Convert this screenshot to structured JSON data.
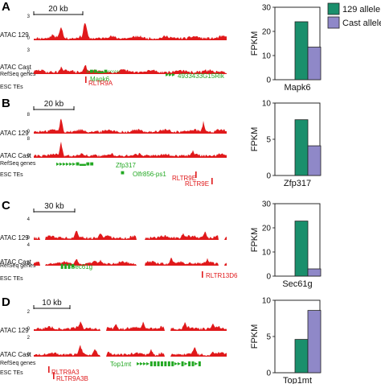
{
  "legend": {
    "items": [
      {
        "label": "129 allele",
        "color": "#1a8f6c"
      },
      {
        "label": "Cast allele",
        "color": "#8f88c8"
      }
    ]
  },
  "colors": {
    "atac": "#e0191b",
    "gene": "#22a822",
    "te": "#e0191b",
    "bar129": "#1a8f6c",
    "barCast": "#8f88c8"
  },
  "track_labels": {
    "atac129": "ATAC 129",
    "atacCast": "ATAC Cast",
    "refseq": "RefSeq genes",
    "esc_tes": "ESC TEs"
  },
  "chart_data": [
    {
      "panel": "A",
      "type": "bar",
      "scale_bar": "20 kb",
      "atac_axis": {
        "max": "3",
        "min": "0"
      },
      "genes": [
        {
          "name": "Mapk6",
          "strand": "-",
          "glyph": "»■■▬■‹‹‹‹‹‹"
        },
        {
          "name": "4933433G15Rik",
          "strand": "+",
          "glyph": "▸▸▸"
        }
      ],
      "tes": [
        "RLTR9A"
      ],
      "ylabel": "FPKM",
      "ylim": [
        0,
        30
      ],
      "yticks": [
        0,
        10,
        20,
        30
      ],
      "categories": [
        "Mapk6"
      ],
      "series": [
        {
          "name": "129 allele",
          "values": [
            24
          ]
        },
        {
          "name": "Cast allele",
          "values": [
            13.5
          ]
        }
      ]
    },
    {
      "panel": "B",
      "type": "bar",
      "scale_bar": "20 kb",
      "atac_axis": {
        "max": "8",
        "min": "0"
      },
      "genes": [
        {
          "name": "Zfp317",
          "strand": "+",
          "glyph": "▸▸▸▸▸▸■▬■■"
        },
        {
          "name": "Olfr856-ps1",
          "strand": "+",
          "glyph": "■"
        }
      ],
      "tes": [
        "RLTR9E",
        "RLTR9E"
      ],
      "ylabel": "FPKM",
      "ylim": [
        0,
        10
      ],
      "yticks": [
        0,
        5,
        10
      ],
      "categories": [
        "Zfp317"
      ],
      "series": [
        {
          "name": "129 allele",
          "values": [
            7.7
          ]
        },
        {
          "name": "Cast allele",
          "values": [
            4.1
          ]
        }
      ]
    },
    {
      "panel": "C",
      "type": "bar",
      "scale_bar": "30 kb",
      "atac_axis": {
        "max": "4",
        "min": "0"
      },
      "genes": [
        {
          "name": "Sec61g",
          "strand": "+",
          "glyph": "▮▮▮■"
        }
      ],
      "tes": [
        "RLTR13D6"
      ],
      "ylabel": "FPKM",
      "ylim": [
        0,
        30
      ],
      "yticks": [
        0,
        10,
        20,
        30
      ],
      "categories": [
        "Sec61g"
      ],
      "series": [
        {
          "name": "129 allele",
          "values": [
            22.8
          ]
        },
        {
          "name": "Cast allele",
          "values": [
            3
          ]
        }
      ]
    },
    {
      "panel": "D",
      "type": "bar",
      "scale_bar": "10 kb",
      "atac_axis": {
        "max": "2",
        "min": "0"
      },
      "genes": [
        {
          "name": "Top1mt",
          "strand": "+",
          "glyph": "▸▸▸▸▮▮▮▮▮▮▮▸▸▮▸▮▮▸▮"
        }
      ],
      "tes": [
        "RLTR9A3",
        "RLTR9A3B"
      ],
      "ylabel": "FPKM",
      "ylim": [
        0,
        10
      ],
      "yticks": [
        0,
        5,
        10
      ],
      "categories": [
        "Top1mt"
      ],
      "series": [
        {
          "name": "129 allele",
          "values": [
            4.6
          ]
        },
        {
          "name": "Cast allele",
          "values": [
            8.6
          ]
        }
      ]
    }
  ]
}
